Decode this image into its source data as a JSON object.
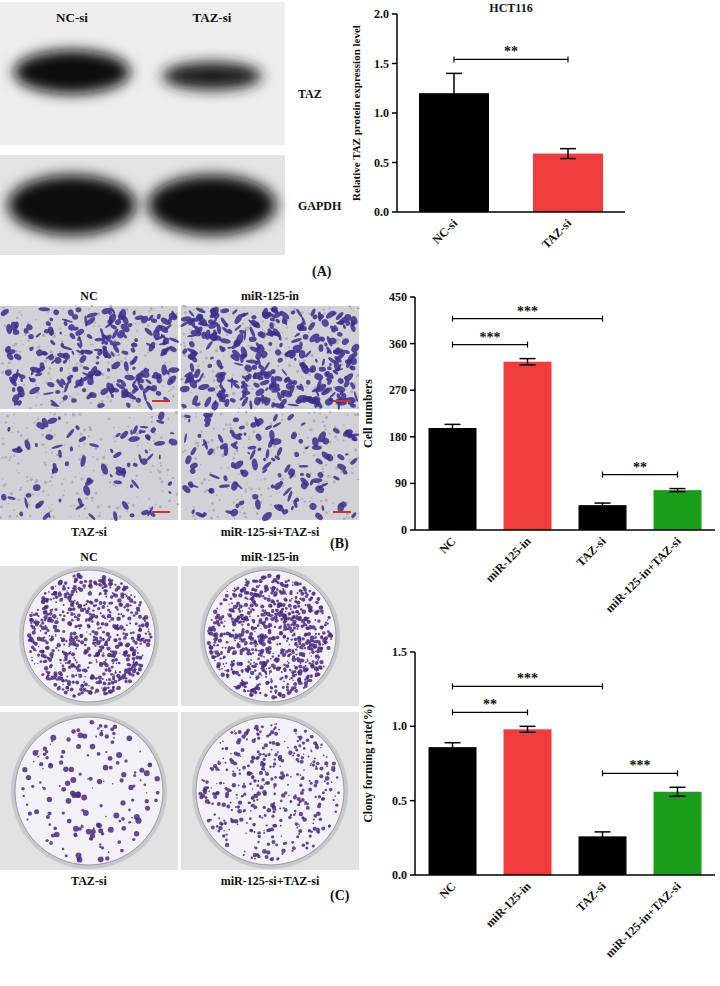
{
  "chart_data": [
    {
      "type": "bar",
      "title": "HCT116",
      "panel_label": "(A)",
      "y_label": "Relative TAZ protein expression level",
      "categories": [
        "NC-si",
        "TAZ-si"
      ],
      "values": [
        1.2,
        0.59
      ],
      "errors": [
        0.2,
        0.05
      ],
      "colors": [
        "#000000",
        "#f03c3c"
      ],
      "ylim": [
        0,
        2
      ],
      "yticks": [
        {
          "value": 0,
          "label": "0.0"
        },
        0.5,
        {
          "value": 1,
          "label": "1.0"
        },
        1.5,
        {
          "value": 2,
          "label": "2.0"
        }
      ],
      "grid": false,
      "annotations": [
        {
          "from": 0,
          "to": 1,
          "text": "**"
        }
      ]
    },
    {
      "type": "bar",
      "panel_label": "(B)",
      "y_label": "Cell numbers",
      "categories": [
        "NC",
        "miR-125-in",
        "TAZ-si",
        "miR-125-in+TAZ-si"
      ],
      "values": [
        197,
        325,
        48,
        77
      ],
      "errors": [
        7,
        6,
        4,
        3
      ],
      "colors": [
        "#000000",
        "#f03c3c",
        "#000000",
        "#1a9e1a"
      ],
      "ylim": [
        0,
        450
      ],
      "yticks": [
        0,
        90,
        180,
        270,
        360,
        450
      ],
      "grid": false,
      "annotations": [
        {
          "from": 0,
          "to": 1,
          "text": "***"
        },
        {
          "from": 2,
          "to": 3,
          "text": "**"
        },
        {
          "from": 0,
          "to": 2,
          "text": "***"
        }
      ]
    },
    {
      "type": "bar",
      "panel_label": "(C)",
      "y_label": "Clony forming rate(%)",
      "categories": [
        "NC",
        "miR-125-in",
        "TAZ-si",
        "miR-125-in+TAZ-si"
      ],
      "values": [
        0.86,
        0.98,
        0.26,
        0.56
      ],
      "errors": [
        0.03,
        0.02,
        0.03,
        0.03
      ],
      "colors": [
        "#000000",
        "#f03c3c",
        "#000000",
        "#1a9e1a"
      ],
      "ylim": [
        0,
        1.5
      ],
      "yticks": [
        {
          "value": 0,
          "label": "0.0"
        },
        0.5,
        {
          "value": 1,
          "label": "1.0"
        },
        1.5
      ],
      "grid": false,
      "annotations": [
        {
          "from": 0,
          "to": 1,
          "text": "**"
        },
        {
          "from": 2,
          "to": 3,
          "text": "***"
        },
        {
          "from": 0,
          "to": 2,
          "text": "***"
        }
      ]
    }
  ],
  "blot": {
    "columns": [
      "NC-si",
      "TAZ-si"
    ],
    "rows": [
      "TAZ",
      "GAPDH"
    ]
  },
  "transwell_images": [
    "NC",
    "miR-125-in",
    "TAZ-si",
    "miR-125-si+TAZ-si"
  ],
  "colony_images": [
    "NC",
    "miR-125-in",
    "TAZ-si",
    "miR-125-si+TAZ-si"
  ]
}
